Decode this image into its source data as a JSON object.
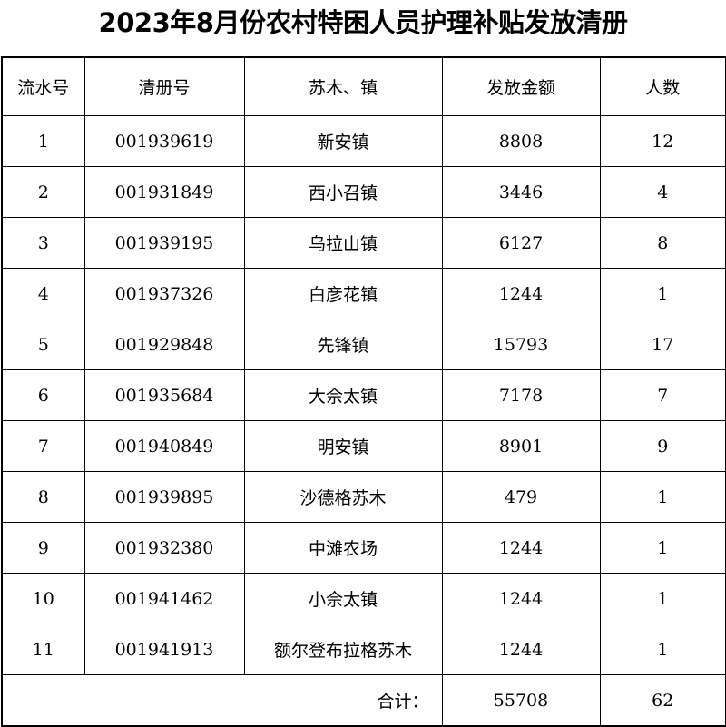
{
  "title": "2023年8月份农村特困人员护理补贴发放清册",
  "columns": [
    "流水号",
    "清册号",
    "苏木、镇",
    "发放金额",
    "人数"
  ],
  "rows": [
    [
      "1",
      "001939619",
      "新安镇",
      "8808",
      "12"
    ],
    [
      "2",
      "001931849",
      "西小召镇",
      "3446",
      "4"
    ],
    [
      "3",
      "001939195",
      "乌拉山镇",
      "6127",
      "8"
    ],
    [
      "4",
      "001937326",
      "白彦花镇",
      "1244",
      "1"
    ],
    [
      "5",
      "001929848",
      "先锋镇",
      "15793",
      "17"
    ],
    [
      "6",
      "001935684",
      "大佘太镇",
      "7178",
      "7"
    ],
    [
      "7",
      "001940849",
      "明安镇",
      "8901",
      "9"
    ],
    [
      "8",
      "001939895",
      "沙德格苏木",
      "479",
      "1"
    ],
    [
      "9",
      "001932380",
      "中滩农场",
      "1244",
      "1"
    ],
    [
      "10",
      "001941462",
      "小佘太镇",
      "1244",
      "1"
    ],
    [
      "11",
      "001941913",
      "额尔登布拉格苏木",
      "1244",
      "1"
    ]
  ],
  "total": {
    "label": "合计：",
    "amount": "55708",
    "count": "62"
  }
}
